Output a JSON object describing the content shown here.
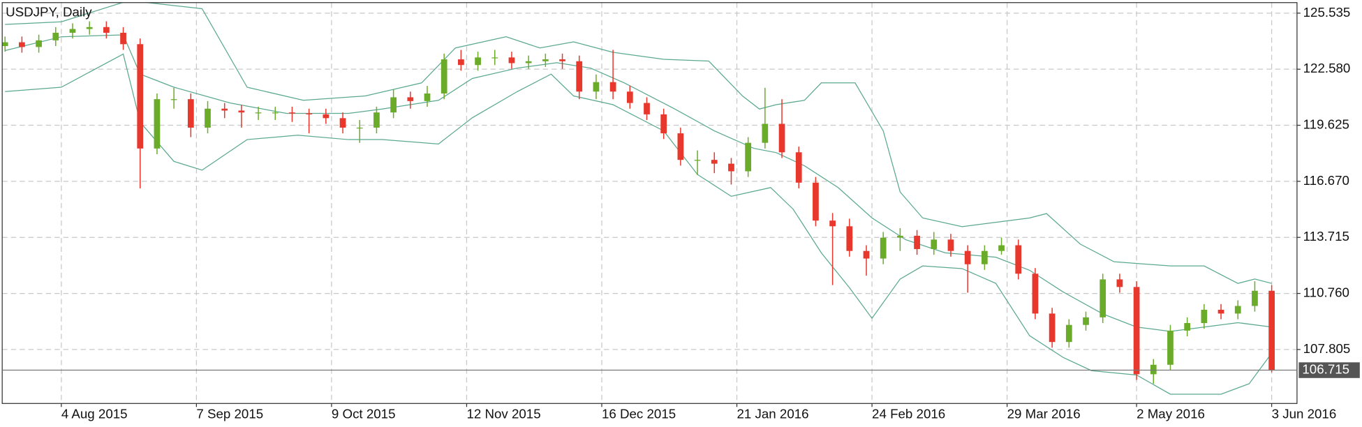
{
  "chart_data": {
    "type": "candlestick",
    "title": "USDJPY, Daily",
    "up_color": "#6aac2a",
    "down_color": "#e8372c",
    "band_color": "#5aa88f",
    "grid": true,
    "xlim": [
      -0.5,
      229.5
    ],
    "xticks": [
      {
        "value": 10,
        "label": "4 Aug 2015"
      },
      {
        "value": 34,
        "label": "7 Sep 2015"
      },
      {
        "value": 58,
        "label": "9 Oct 2015"
      },
      {
        "value": 82,
        "label": "12 Nov 2015"
      },
      {
        "value": 106,
        "label": "16 Dec 2015"
      },
      {
        "value": 130,
        "label": "21 Jan 2016"
      },
      {
        "value": 154,
        "label": "24 Feb 2016"
      },
      {
        "value": 178,
        "label": "29 Mar 2016"
      },
      {
        "value": 201,
        "label": "2 May 2016"
      },
      {
        "value": 225,
        "label": "3 Jun 2016"
      }
    ],
    "ylim": [
      104.96,
      126.09
    ],
    "yticks": [
      125.535,
      {
        "value": 122.58,
        "label": "122.580"
      },
      119.625,
      {
        "value": 116.67,
        "label": "116.670"
      },
      113.715,
      {
        "value": 110.76,
        "label": "110.760"
      },
      107.805
    ],
    "last_price": 106.715,
    "x": [
      0,
      3,
      6,
      9,
      12,
      15,
      18,
      21,
      24,
      27,
      30,
      33,
      36,
      39,
      42,
      45,
      48,
      51,
      54,
      57,
      60,
      63,
      66,
      69,
      72,
      75,
      78,
      81,
      84,
      87,
      90,
      93,
      96,
      99,
      102,
      105,
      108,
      111,
      114,
      117,
      120,
      123,
      126,
      129,
      132,
      135,
      138,
      141,
      144,
      147,
      150,
      153,
      156,
      159,
      162,
      165,
      168,
      171,
      174,
      177,
      180,
      183,
      186,
      189,
      192,
      195,
      198,
      201,
      204,
      207,
      210,
      213,
      216,
      219,
      222,
      225
    ],
    "open": [
      123.8,
      124.0,
      123.75,
      124.1,
      124.5,
      124.7,
      124.8,
      124.5,
      123.9,
      118.4,
      121.0,
      121.0,
      119.5,
      120.5,
      120.4,
      120.3,
      120.3,
      120.3,
      120.25,
      120.2,
      120.0,
      119.5,
      119.5,
      120.3,
      121.1,
      120.9,
      121.3,
      123.1,
      122.8,
      123.2,
      123.2,
      122.9,
      123.0,
      123.1,
      123.0,
      121.4,
      121.9,
      121.4,
      120.8,
      120.2,
      119.2,
      117.8,
      117.8,
      117.6,
      117.2,
      118.7,
      119.7,
      118.2,
      116.6,
      114.6,
      114.3,
      113.0,
      112.6,
      113.7,
      113.8,
      113.1,
      113.6,
      113.0,
      112.3,
      113.0,
      113.3,
      111.8,
      109.7,
      108.2,
      109.1,
      109.5,
      111.5,
      111.1,
      106.5,
      107.0,
      108.8,
      109.2,
      109.9,
      109.7,
      110.1,
      110.9
    ],
    "high": [
      124.3,
      124.3,
      124.4,
      124.8,
      125.0,
      125.1,
      125.1,
      124.8,
      124.2,
      121.3,
      121.6,
      121.3,
      120.9,
      120.8,
      120.7,
      120.6,
      120.6,
      120.6,
      120.5,
      120.5,
      120.3,
      119.9,
      120.6,
      121.5,
      121.4,
      121.7,
      123.4,
      123.6,
      123.5,
      123.6,
      123.5,
      123.3,
      123.4,
      123.4,
      123.3,
      122.3,
      123.6,
      121.7,
      121.1,
      120.5,
      119.5,
      118.3,
      118.2,
      117.9,
      119.0,
      121.6,
      121.0,
      118.5,
      116.9,
      115.0,
      114.7,
      113.3,
      114.0,
      114.2,
      114.1,
      114.0,
      113.9,
      113.3,
      113.3,
      113.7,
      113.6,
      112.1,
      110.0,
      109.4,
      109.8,
      111.8,
      111.8,
      111.4,
      107.3,
      109.1,
      109.5,
      110.2,
      110.2,
      110.4,
      111.4,
      111.2
    ],
    "low": [
      123.5,
      123.45,
      123.45,
      123.8,
      124.2,
      124.4,
      124.2,
      123.6,
      116.3,
      118.1,
      120.5,
      119.0,
      119.2,
      120.0,
      119.5,
      119.9,
      119.9,
      119.8,
      119.2,
      119.7,
      119.2,
      118.7,
      119.2,
      120.0,
      120.5,
      120.6,
      121.0,
      122.5,
      122.5,
      122.8,
      122.6,
      122.6,
      122.7,
      122.6,
      121.0,
      121.0,
      121.0,
      120.5,
      119.9,
      118.9,
      117.5,
      117.0,
      117.1,
      116.5,
      116.9,
      118.4,
      117.9,
      116.3,
      114.3,
      111.2,
      112.7,
      111.7,
      112.3,
      113.0,
      112.8,
      112.8,
      112.7,
      110.8,
      112.0,
      112.8,
      111.5,
      109.4,
      107.9,
      107.9,
      108.8,
      109.2,
      110.8,
      106.2,
      106.0,
      106.7,
      108.5,
      108.9,
      109.4,
      109.4,
      109.8,
      106.6
    ],
    "close": [
      124.0,
      123.75,
      124.1,
      124.5,
      124.7,
      124.8,
      124.5,
      123.9,
      118.4,
      121.0,
      121.0,
      119.5,
      120.5,
      120.4,
      120.3,
      120.3,
      120.3,
      120.25,
      120.2,
      120.0,
      119.5,
      119.5,
      120.3,
      121.1,
      120.9,
      121.3,
      123.1,
      122.8,
      123.2,
      123.2,
      122.9,
      123.0,
      123.1,
      123.0,
      121.4,
      121.9,
      121.4,
      120.8,
      120.2,
      119.2,
      117.8,
      117.8,
      117.6,
      117.2,
      118.7,
      119.7,
      118.2,
      116.6,
      114.6,
      114.3,
      113.0,
      112.6,
      113.7,
      113.8,
      113.1,
      113.6,
      113.0,
      112.3,
      113.0,
      113.3,
      111.8,
      109.7,
      108.2,
      109.1,
      109.5,
      111.5,
      111.1,
      106.5,
      107.0,
      108.8,
      109.2,
      109.9,
      109.7,
      110.1,
      110.9,
      106.715
    ],
    "bands": [
      {
        "x": [
          0,
          10,
          22,
          35,
          43,
          53,
          64,
          74,
          80,
          89,
          95,
          101,
          108,
          117,
          125,
          131,
          134,
          137,
          142,
          145,
          151,
          156,
          159,
          163,
          170,
          176,
          182,
          185,
          191,
          197,
          207,
          213,
          219,
          222,
          225
        ],
        "values": [
          124.94,
          125.08,
          126.2,
          125.77,
          121.63,
          120.94,
          121.17,
          121.86,
          123.7,
          124.29,
          123.7,
          124.02,
          123.47,
          123.1,
          123.01,
          121.17,
          120.48,
          120.71,
          120.94,
          121.86,
          121.86,
          119.33,
          116.11,
          114.74,
          114.28,
          114.51,
          114.74,
          114.97,
          113.36,
          112.43,
          112.21,
          112.21,
          111.29,
          111.52,
          111.29
        ]
      },
      {
        "x": [
          0,
          10,
          21,
          24,
          30,
          40,
          50,
          61,
          67,
          77,
          83,
          91,
          98,
          104,
          110,
          119,
          126,
          133,
          137,
          142,
          148,
          154,
          160,
          167,
          176,
          182,
          188,
          195,
          201,
          207,
          213,
          219,
          225
        ],
        "values": [
          123.56,
          124.29,
          124.39,
          122.32,
          121.63,
          120.8,
          120.25,
          120.25,
          120.48,
          120.94,
          122.09,
          122.64,
          122.92,
          122.64,
          121.86,
          120.48,
          119.33,
          118.41,
          118.18,
          117.49,
          116.34,
          114.74,
          113.59,
          112.9,
          112.67,
          111.98,
          110.83,
          109.68,
          108.99,
          108.76,
          108.99,
          109.22,
          108.99
        ]
      },
      {
        "x": [
          0,
          10,
          21,
          24,
          30,
          35,
          43,
          52,
          61,
          67,
          77,
          83,
          91,
          97,
          101,
          108,
          117,
          123,
          129,
          136,
          140,
          145,
          150,
          154,
          159,
          163,
          170,
          176,
          182,
          188,
          193,
          201,
          207,
          216,
          221,
          225
        ],
        "values": [
          121.4,
          121.63,
          123.38,
          119.79,
          117.72,
          117.26,
          118.87,
          119.1,
          118.87,
          118.87,
          118.64,
          120.02,
          121.4,
          122.32,
          121.17,
          120.71,
          119.33,
          117.03,
          115.88,
          116.34,
          115.2,
          112.9,
          111.06,
          109.45,
          111.52,
          112.21,
          112.07,
          111.29,
          108.53,
          107.38,
          106.69,
          106.46,
          105.45,
          105.45,
          106.0,
          107.61
        ]
      }
    ]
  }
}
